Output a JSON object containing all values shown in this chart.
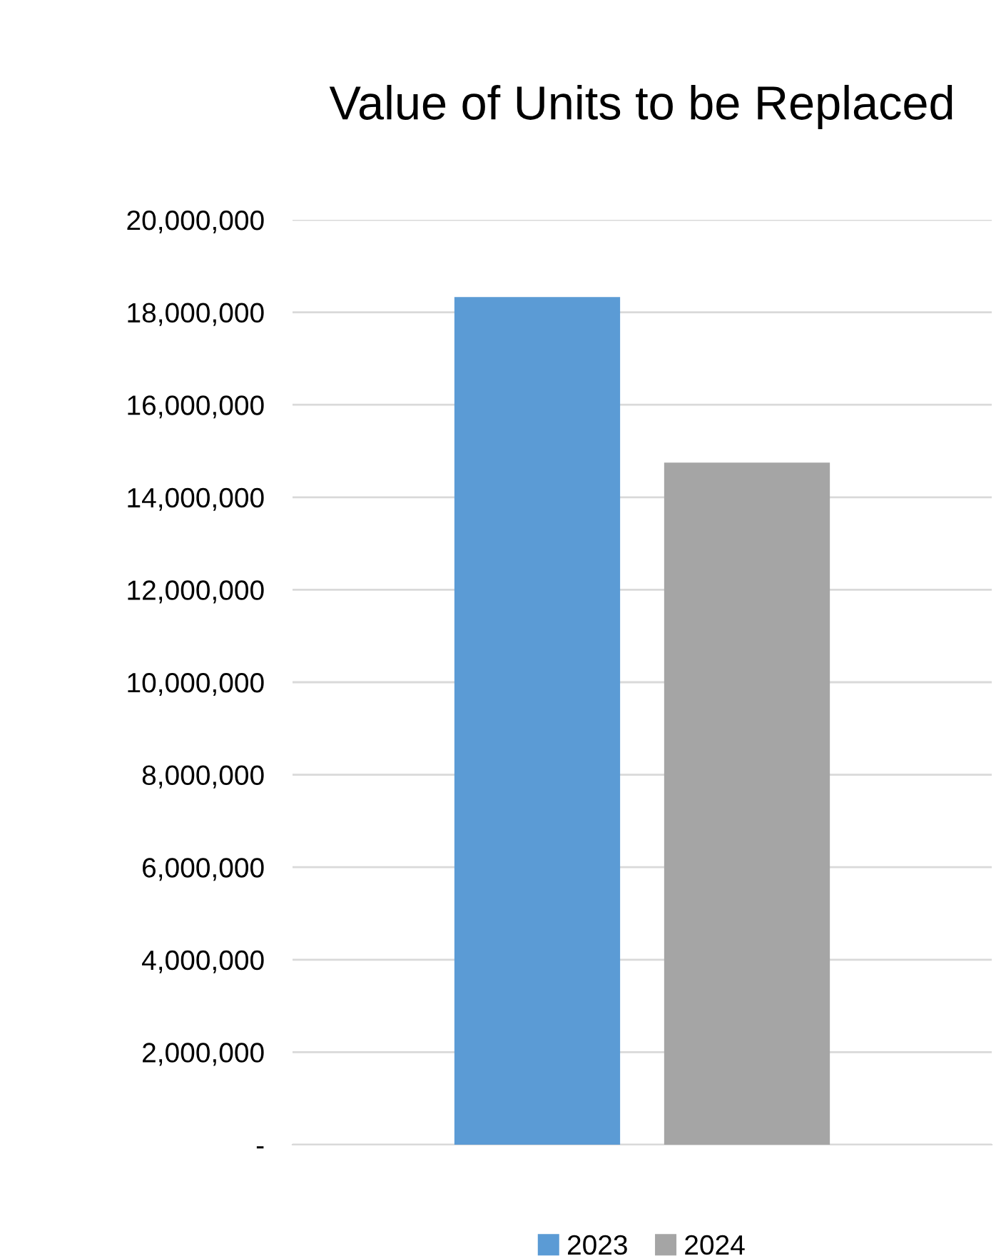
{
  "chart_data": {
    "type": "bar",
    "title": "Value of Units to be Replaced",
    "categories": [
      null
    ],
    "series": [
      {
        "name": "2023",
        "color": "#5b9bd5",
        "values": [
          18330000
        ]
      },
      {
        "name": "2024",
        "color": "#a5a5a5",
        "values": [
          14750000
        ]
      }
    ],
    "ylim": [
      0,
      20000000
    ],
    "yticks": [
      {
        "value": 0,
        "label": "-"
      },
      {
        "value": 2000000,
        "label": "2,000,000"
      },
      {
        "value": 4000000,
        "label": "4,000,000"
      },
      {
        "value": 6000000,
        "label": "6,000,000"
      },
      {
        "value": 8000000,
        "label": "8,000,000"
      },
      {
        "value": 10000000,
        "label": "10,000,000"
      },
      {
        "value": 12000000,
        "label": "12,000,000"
      },
      {
        "value": 14000000,
        "label": "14,000,000"
      },
      {
        "value": 16000000,
        "label": "16,000,000"
      },
      {
        "value": 18000000,
        "label": "18,000,000"
      },
      {
        "value": 20000000,
        "label": "20,000,000"
      }
    ],
    "grid": "y",
    "legend": "bottom"
  }
}
